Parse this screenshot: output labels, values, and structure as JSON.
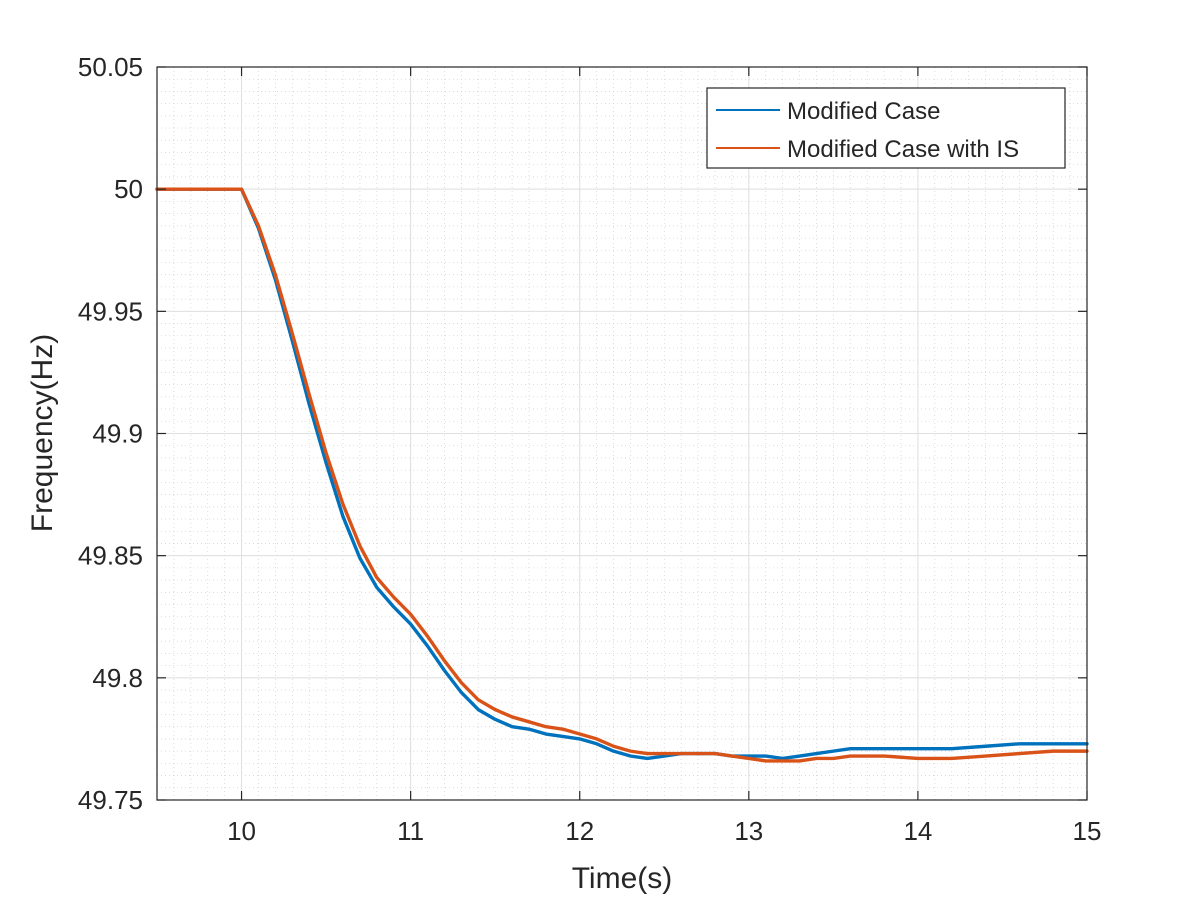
{
  "chart_data": {
    "type": "line",
    "title": "",
    "xlabel": "Time(s)",
    "ylabel": "Frequency(Hz)",
    "xlim": [
      9.5,
      15
    ],
    "ylim": [
      49.75,
      50.05
    ],
    "xticks": [
      10,
      11,
      12,
      13,
      14,
      15
    ],
    "xtick_labels": [
      "10",
      "11",
      "12",
      "13",
      "14",
      "15"
    ],
    "yticks": [
      49.75,
      49.8,
      49.85,
      49.9,
      49.95,
      50,
      50.05
    ],
    "ytick_labels": [
      "49.75",
      "49.8",
      "49.85",
      "49.9",
      "49.95",
      "50",
      "50.05"
    ],
    "grid": true,
    "minor_grid": true,
    "legend_location": "top-right",
    "series": [
      {
        "name": "Modified Case",
        "color": "#0072BD",
        "x": [
          9.5,
          10.0,
          10.1,
          10.2,
          10.3,
          10.4,
          10.5,
          10.6,
          10.7,
          10.8,
          10.9,
          11.0,
          11.1,
          11.2,
          11.3,
          11.4,
          11.5,
          11.6,
          11.7,
          11.8,
          11.9,
          12.0,
          12.1,
          12.2,
          12.3,
          12.4,
          12.5,
          12.6,
          12.7,
          12.8,
          12.9,
          13.0,
          13.1,
          13.2,
          13.3,
          13.4,
          13.5,
          13.6,
          13.7,
          13.8,
          14.0,
          14.2,
          14.4,
          14.6,
          14.8,
          15.0
        ],
        "y": [
          50.0,
          50.0,
          49.984,
          49.963,
          49.938,
          49.912,
          49.888,
          49.866,
          49.849,
          49.837,
          49.829,
          49.822,
          49.813,
          49.803,
          49.794,
          49.787,
          49.783,
          49.78,
          49.779,
          49.777,
          49.776,
          49.775,
          49.773,
          49.77,
          49.768,
          49.767,
          49.768,
          49.769,
          49.769,
          49.769,
          49.768,
          49.768,
          49.768,
          49.767,
          49.768,
          49.769,
          49.77,
          49.771,
          49.771,
          49.771,
          49.771,
          49.771,
          49.772,
          49.773,
          49.773,
          49.773
        ]
      },
      {
        "name": "Modified Case with IS",
        "color": "#D95319",
        "x": [
          9.5,
          10.0,
          10.1,
          10.2,
          10.3,
          10.4,
          10.5,
          10.6,
          10.7,
          10.8,
          10.9,
          11.0,
          11.1,
          11.2,
          11.3,
          11.4,
          11.5,
          11.6,
          11.7,
          11.8,
          11.9,
          12.0,
          12.1,
          12.2,
          12.3,
          12.4,
          12.5,
          12.6,
          12.7,
          12.8,
          12.9,
          13.0,
          13.1,
          13.2,
          13.3,
          13.4,
          13.5,
          13.6,
          13.7,
          13.8,
          14.0,
          14.2,
          14.4,
          14.6,
          14.8,
          15.0
        ],
        "y": [
          50.0,
          50.0,
          49.985,
          49.965,
          49.941,
          49.916,
          49.892,
          49.871,
          49.854,
          49.841,
          49.833,
          49.826,
          49.817,
          49.807,
          49.798,
          49.791,
          49.787,
          49.784,
          49.782,
          49.78,
          49.779,
          49.777,
          49.775,
          49.772,
          49.77,
          49.769,
          49.769,
          49.769,
          49.769,
          49.769,
          49.768,
          49.767,
          49.766,
          49.766,
          49.766,
          49.767,
          49.767,
          49.768,
          49.768,
          49.768,
          49.767,
          49.767,
          49.768,
          49.769,
          49.77,
          49.77
        ]
      }
    ]
  }
}
